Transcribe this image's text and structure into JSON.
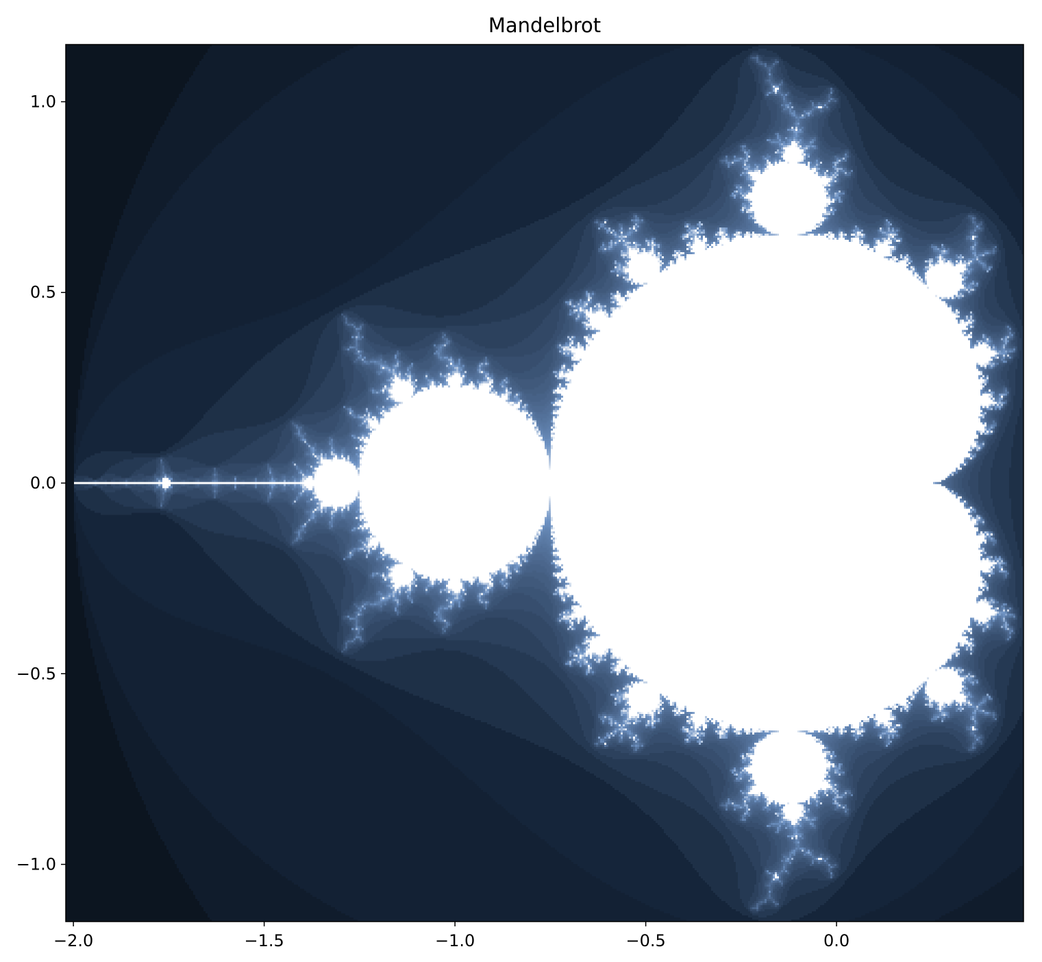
{
  "chart_data": {
    "type": "heatmap",
    "title": "Mandelbrot",
    "xlabel": "",
    "ylabel": "",
    "function": "z -> z^2 + c, escape-time iteration count",
    "xlim": [
      -2.02,
      0.49
    ],
    "ylim": [
      -1.15,
      1.15
    ],
    "max_iter": 100,
    "escape_radius": 2.0,
    "xticks": [
      -2.0,
      -1.5,
      -1.0,
      -0.5,
      0.0
    ],
    "yticks": [
      -1.0,
      -0.5,
      0.0,
      0.5,
      1.0
    ],
    "xtick_labels": [
      "−2.0",
      "−1.5",
      "−1.0",
      "−0.5",
      "0.0"
    ],
    "ytick_labels": [
      "−1.0",
      "−0.5",
      "0.0",
      "0.5",
      "1.0"
    ],
    "colormap": "bone-like (dark navy to white)",
    "colors": {
      "escaped_fast": "#06090d",
      "escaped_mid": "#15253a",
      "edge": "#6f93c4",
      "inside_set": "#ffffff"
    },
    "grid": false,
    "legend": "none"
  }
}
